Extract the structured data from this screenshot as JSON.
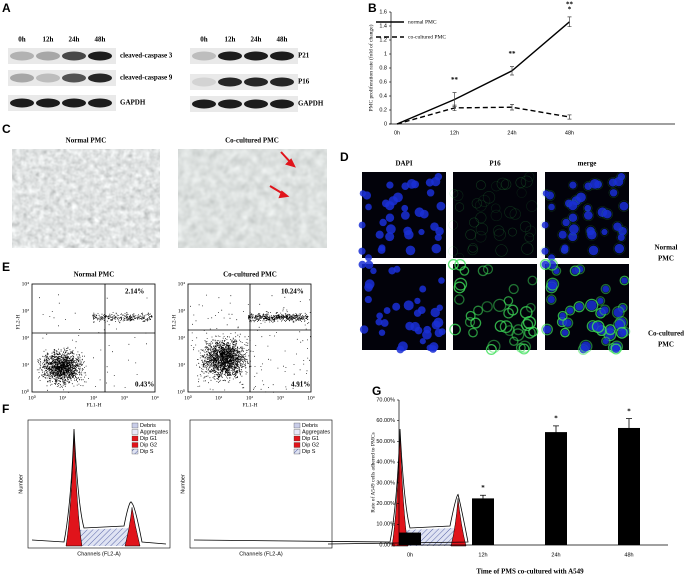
{
  "panel_labels": [
    "A",
    "B",
    "C",
    "D",
    "E",
    "F",
    "G"
  ],
  "panel_a": {
    "left": {
      "lanes": [
        "0h",
        "12h",
        "24h",
        "48h"
      ],
      "rows": [
        "cleaved-caspase 3",
        "cleaved-caspase 9",
        "GAPDH"
      ]
    },
    "right": {
      "lanes": [
        "0h",
        "12h",
        "24h",
        "48h"
      ],
      "rows": [
        "P21",
        "P16",
        "GAPDH"
      ]
    }
  },
  "panel_c": {
    "titles": [
      "Normal PMC",
      "Co-cultured  PMC"
    ]
  },
  "panel_d": {
    "columns": [
      "DAPI",
      "P16",
      "merge"
    ],
    "rows": [
      [
        "Normal",
        "PMC"
      ],
      [
        "Co-cultured",
        "PMC"
      ]
    ]
  },
  "panel_e": {
    "plots": [
      {
        "title": "Normal PMC",
        "upper_right": "2.14%",
        "lower_right": "0.43%"
      },
      {
        "title": "Co-cultured  PMC",
        "upper_right": "10.24%",
        "lower_right": "4.91%"
      }
    ],
    "x_label": "FL1-H",
    "y_label": "FL2-H",
    "ticks": [
      "10⁰",
      "10¹",
      "10²",
      "10³",
      "10⁴"
    ]
  },
  "panel_f": {
    "legend": [
      "Debris",
      "Aggregates",
      "Dip G1",
      "Dip G2",
      "Dip S"
    ],
    "x_label": "Channels (FL2-A)",
    "y_label": "Number"
  },
  "chart_data": [
    {
      "type": "line",
      "categories": [
        "0h",
        "12h",
        "24h",
        "48h"
      ],
      "y_label": "PMC proliferation rate (fold of change)",
      "ylim": [
        0,
        1.6
      ],
      "yticks": [
        0,
        0.2,
        0.4,
        0.6,
        0.8,
        1,
        1.2,
        1.4,
        1.6
      ],
      "legend": "upper left",
      "series": [
        {
          "name": "normal PMC",
          "color": "#000000",
          "line_style": "solid",
          "values": [
            0,
            0.35,
            0.76,
            1.46
          ],
          "errors": [
            null,
            0.1,
            0.06,
            0.07
          ]
        },
        {
          "name": "co-cultured PMC",
          "color": "#000000",
          "line_style": "dashed",
          "values": [
            0,
            0.23,
            0.24,
            0.1
          ],
          "errors": [
            null,
            0.04,
            0.04,
            0.03
          ]
        }
      ],
      "significance": [
        null,
        [
          "**"
        ],
        [
          "**"
        ],
        [
          "**",
          "*"
        ]
      ]
    },
    {
      "type": "bar",
      "categories": [
        "0h",
        "12h",
        "24h",
        "48h"
      ],
      "x_label": "Time of PMS co-cultured with A549",
      "y_label": "Rate of A549 cells adhered to PMCs",
      "color": "#000000",
      "values": [
        6,
        22.5,
        54.5,
        56.5
      ],
      "errors": [
        null,
        1.5,
        3,
        4.5
      ],
      "significance": [
        null,
        "*",
        "*",
        "*"
      ],
      "ylim": [
        0,
        70
      ],
      "yticks": [
        {
          "value": 0,
          "label": "0.00%"
        },
        {
          "value": 10,
          "label": "10.00%"
        },
        {
          "value": 20,
          "label": "20.00%"
        },
        {
          "value": 30,
          "label": "30.00%"
        },
        {
          "value": 40,
          "label": "40.00%"
        },
        {
          "value": 50,
          "label": "50.00%"
        },
        {
          "value": 60,
          "label": "60.00%"
        },
        {
          "value": 70,
          "label": "70.00%"
        }
      ]
    }
  ]
}
